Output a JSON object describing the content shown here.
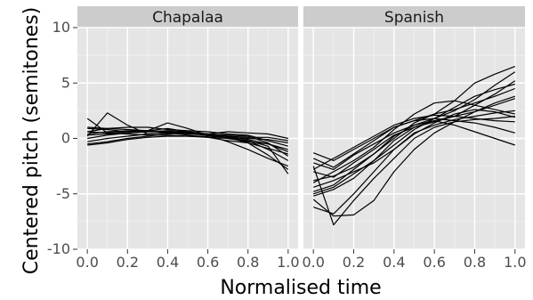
{
  "chart_data": {
    "type": "line",
    "facets": [
      {
        "name": "Chapalaa",
        "series": [
          {
            "x": [
              0,
              0.1,
              0.2,
              0.3,
              0.4,
              0.5,
              0.6,
              0.7,
              0.8,
              0.9,
              1.0
            ],
            "y": [
              1.8,
              0.5,
              0.6,
              0.7,
              0.9,
              0.6,
              0.3,
              0.1,
              -0.4,
              -1.5,
              -2.8
            ]
          },
          {
            "x": [
              0,
              0.1,
              0.2,
              0.3,
              0.4,
              0.5,
              0.6,
              0.7,
              0.8,
              0.9,
              1.0
            ],
            "y": [
              0.2,
              2.3,
              1.2,
              0.4,
              0.5,
              0.6,
              0.4,
              0.2,
              -0.1,
              -0.5,
              -1.0
            ]
          },
          {
            "x": [
              0,
              0.1,
              0.2,
              0.3,
              0.4,
              0.5,
              0.6,
              0.7,
              0.8,
              0.9,
              1.0
            ],
            "y": [
              -0.5,
              -0.3,
              0.0,
              0.2,
              0.4,
              0.5,
              0.4,
              0.3,
              0.2,
              -0.4,
              -1.6
            ]
          },
          {
            "x": [
              0,
              0.1,
              0.2,
              0.3,
              0.4,
              0.5,
              0.6,
              0.7,
              0.8,
              0.9,
              1.0
            ],
            "y": [
              0.9,
              0.8,
              0.6,
              0.7,
              1.4,
              0.9,
              0.3,
              -0.3,
              -1.0,
              -1.8,
              -2.5
            ]
          },
          {
            "x": [
              0,
              0.1,
              0.2,
              0.3,
              0.4,
              0.5,
              0.6,
              0.7,
              0.8,
              0.9,
              1.0
            ],
            "y": [
              0.6,
              0.9,
              1.0,
              1.0,
              0.8,
              0.7,
              0.6,
              0.4,
              0.3,
              -0.2,
              -0.7
            ]
          },
          {
            "x": [
              0,
              0.1,
              0.2,
              0.3,
              0.4,
              0.5,
              0.6,
              0.7,
              0.8,
              0.9,
              1.0
            ],
            "y": [
              -0.3,
              0.0,
              0.2,
              0.4,
              0.5,
              0.4,
              0.3,
              0.1,
              -0.2,
              -1.0,
              -2.0
            ]
          },
          {
            "x": [
              0,
              0.1,
              0.2,
              0.3,
              0.4,
              0.5,
              0.6,
              0.7,
              0.8,
              0.9,
              1.0
            ],
            "y": [
              0.4,
              0.6,
              0.7,
              0.7,
              0.6,
              0.5,
              0.4,
              0.2,
              0.1,
              0.1,
              -0.2
            ]
          },
          {
            "x": [
              0,
              0.1,
              0.2,
              0.3,
              0.4,
              0.5,
              0.6,
              0.7,
              0.8,
              0.9,
              1.0
            ],
            "y": [
              0.0,
              0.3,
              0.5,
              0.6,
              0.6,
              0.5,
              0.4,
              0.6,
              0.5,
              0.4,
              0.0
            ]
          },
          {
            "x": [
              0,
              0.1,
              0.2,
              0.3,
              0.4,
              0.5,
              0.6,
              0.7,
              0.8,
              0.9,
              1.0
            ],
            "y": [
              1.0,
              0.9,
              0.8,
              0.7,
              0.5,
              0.3,
              0.1,
              -0.2,
              -0.4,
              -0.9,
              -1.4
            ]
          },
          {
            "x": [
              0,
              0.1,
              0.2,
              0.3,
              0.4,
              0.5,
              0.6,
              0.7,
              0.8,
              0.9,
              1.0
            ],
            "y": [
              -0.6,
              -0.4,
              -0.1,
              0.1,
              0.2,
              0.2,
              0.1,
              0.0,
              -0.2,
              -0.7,
              -3.2
            ]
          },
          {
            "x": [
              0,
              0.1,
              0.2,
              0.3,
              0.4,
              0.5,
              0.6,
              0.7,
              0.8,
              0.9,
              1.0
            ],
            "y": [
              0.3,
              0.4,
              0.5,
              0.6,
              0.7,
              0.6,
              0.4,
              0.0,
              -0.3,
              -0.5,
              -1.2
            ]
          },
          {
            "x": [
              0,
              0.1,
              0.2,
              0.3,
              0.4,
              0.5,
              0.6,
              0.7,
              0.8,
              0.9,
              1.0
            ],
            "y": [
              0.6,
              0.5,
              0.4,
              0.3,
              0.3,
              0.2,
              0.2,
              0.1,
              0.0,
              -0.1,
              -0.4
            ]
          }
        ]
      },
      {
        "name": "Spanish",
        "series": [
          {
            "x": [
              0,
              0.1,
              0.2,
              0.3,
              0.4,
              0.5,
              0.6,
              0.7,
              0.8,
              0.9,
              1.0
            ],
            "y": [
              -1.3,
              -2.0,
              -1.0,
              0.0,
              1.0,
              1.6,
              2.2,
              3.4,
              5.0,
              5.8,
              6.5
            ]
          },
          {
            "x": [
              0,
              0.1,
              0.2,
              0.3,
              0.4,
              0.5,
              0.6,
              0.7,
              0.8,
              0.9,
              1.0
            ],
            "y": [
              -2.2,
              -2.8,
              -1.5,
              -0.5,
              0.5,
              1.2,
              1.8,
              2.5,
              3.5,
              4.8,
              6.0
            ]
          },
          {
            "x": [
              0,
              0.1,
              0.2,
              0.3,
              0.4,
              0.5,
              0.6,
              0.7,
              0.8,
              0.9,
              1.0
            ],
            "y": [
              -3.0,
              -3.5,
              -2.2,
              -1.0,
              0.3,
              1.0,
              1.5,
              2.0,
              3.0,
              4.0,
              5.2
            ]
          },
          {
            "x": [
              0,
              0.1,
              0.2,
              0.3,
              0.4,
              0.5,
              0.6,
              0.7,
              0.8,
              0.9,
              1.0
            ],
            "y": [
              -4.0,
              -3.0,
              -2.0,
              -0.8,
              0.8,
              2.2,
              3.2,
              3.4,
              3.0,
              2.6,
              2.2
            ]
          },
          {
            "x": [
              0,
              0.1,
              0.2,
              0.3,
              0.4,
              0.5,
              0.6,
              0.7,
              0.8,
              0.9,
              1.0
            ],
            "y": [
              -4.8,
              -4.2,
              -2.8,
              -1.4,
              0.0,
              1.4,
              2.2,
              2.6,
              3.2,
              3.8,
              4.5
            ]
          },
          {
            "x": [
              0,
              0.1,
              0.2,
              0.3,
              0.4,
              0.5,
              0.6,
              0.7,
              0.8,
              0.9,
              1.0
            ],
            "y": [
              -5.2,
              -4.6,
              -3.6,
              -2.0,
              -0.2,
              1.0,
              1.6,
              2.0,
              2.4,
              3.2,
              3.8
            ]
          },
          {
            "x": [
              0,
              0.1,
              0.2,
              0.3,
              0.4,
              0.5,
              0.6,
              0.7,
              0.8,
              0.9,
              1.0
            ],
            "y": [
              -6.2,
              -6.8,
              -5.0,
              -3.0,
              -1.0,
              0.5,
              1.2,
              1.7,
              2.0,
              2.3,
              2.5
            ]
          },
          {
            "x": [
              0,
              0.1,
              0.2,
              0.3,
              0.4,
              0.5,
              0.6,
              0.7,
              0.8,
              0.9,
              1.0
            ],
            "y": [
              -2.5,
              -7.8,
              -5.6,
              -3.6,
              -1.8,
              0.0,
              1.0,
              1.5,
              1.7,
              1.8,
              2.0
            ]
          },
          {
            "x": [
              0,
              0.1,
              0.2,
              0.3,
              0.4,
              0.5,
              0.6,
              0.7,
              0.8,
              0.9,
              1.0
            ],
            "y": [
              -5.5,
              -7.0,
              -6.9,
              -5.6,
              -3.0,
              -1.0,
              0.5,
              1.5,
              2.4,
              3.0,
              3.6
            ]
          },
          {
            "x": [
              0,
              0.1,
              0.2,
              0.3,
              0.4,
              0.5,
              0.6,
              0.7,
              0.8,
              0.9,
              1.0
            ],
            "y": [
              -1.8,
              -2.6,
              -1.4,
              -0.2,
              1.0,
              1.6,
              1.8,
              1.6,
              1.4,
              1.0,
              0.5
            ]
          },
          {
            "x": [
              0,
              0.1,
              0.2,
              0.3,
              0.4,
              0.5,
              0.6,
              0.7,
              0.8,
              0.9,
              1.0
            ],
            "y": [
              -3.8,
              -3.4,
              -2.6,
              -1.4,
              0.2,
              1.2,
              1.6,
              1.2,
              0.6,
              0.0,
              -0.6
            ]
          },
          {
            "x": [
              0,
              0.1,
              0.2,
              0.3,
              0.4,
              0.5,
              0.6,
              0.7,
              0.8,
              0.9,
              1.0
            ],
            "y": [
              -4.4,
              -3.8,
              -3.0,
              -2.2,
              -1.0,
              0.4,
              1.4,
              2.2,
              2.6,
              2.4,
              1.9
            ]
          },
          {
            "x": [
              0,
              0.1,
              0.2,
              0.3,
              0.4,
              0.5,
              0.6,
              0.7,
              0.8,
              0.9,
              1.0
            ],
            "y": [
              -2.8,
              -1.8,
              -0.8,
              0.2,
              1.2,
              1.8,
              2.1,
              2.0,
              1.8,
              1.6,
              1.5
            ]
          },
          {
            "x": [
              0,
              0.1,
              0.2,
              0.3,
              0.4,
              0.5,
              0.6,
              0.7,
              0.8,
              0.9,
              1.0
            ],
            "y": [
              -5.0,
              -4.4,
              -3.2,
              -2.0,
              -0.6,
              0.8,
              1.8,
              2.8,
              3.8,
              4.4,
              4.9
            ]
          }
        ]
      }
    ],
    "xlabel": "Normalised time",
    "ylabel": "Centered pitch (semitones)",
    "xlim": [
      0,
      1
    ],
    "ylim": [
      -10,
      10
    ],
    "xticks": [
      "0.0",
      "0.2",
      "0.4",
      "0.6",
      "0.8",
      "1.0"
    ],
    "yticks": [
      "10",
      "5",
      "0",
      "-5",
      "-10"
    ],
    "grid": true,
    "line_color": "#000000",
    "panel_background": "#e5e5e5",
    "strip_background": "#cccccc"
  }
}
